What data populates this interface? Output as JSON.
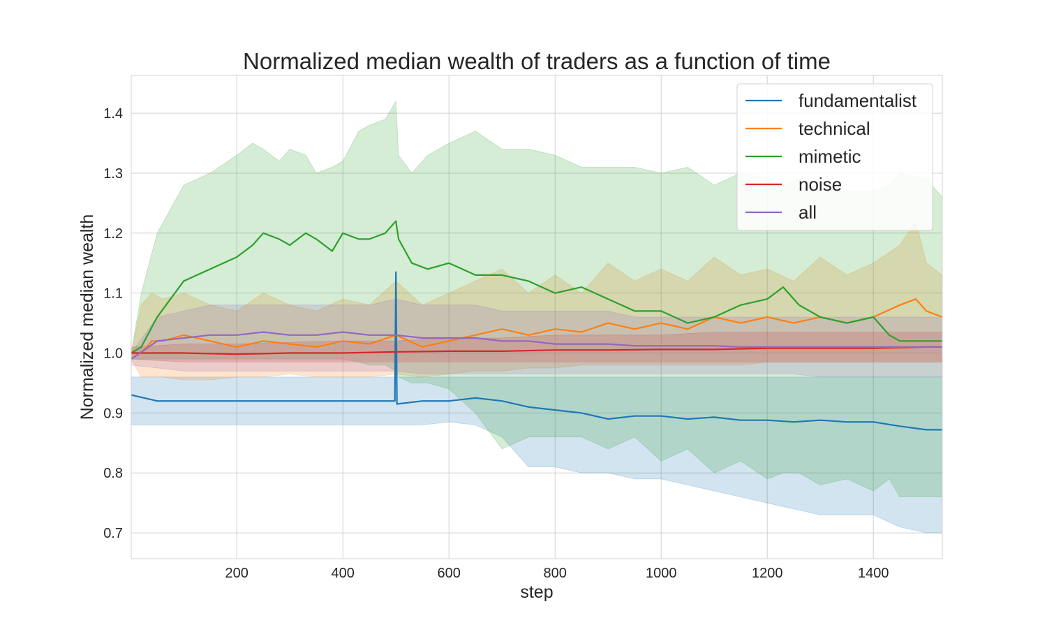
{
  "chart_data": {
    "type": "line",
    "title": "Normalized median wealth of traders as a function of time",
    "xlabel": "step",
    "ylabel": "Normalized median wealth",
    "xlim": [
      1,
      1530
    ],
    "ylim": [
      0.657,
      1.463
    ],
    "x_ticks": [
      200,
      400,
      600,
      800,
      1000,
      1200,
      1400
    ],
    "y_ticks": [
      0.7,
      0.8,
      0.9,
      1.0,
      1.1,
      1.2,
      1.3,
      1.4
    ],
    "x_tick_labels": [
      "200",
      "400",
      "600",
      "800",
      "1000",
      "1200",
      "1400"
    ],
    "y_tick_labels": [
      "0.7",
      "0.8",
      "0.9",
      "1.0",
      "1.1",
      "1.2",
      "1.3",
      "1.4"
    ],
    "grid": true,
    "legend_position": "top-right",
    "series": [
      {
        "name": "fundamentalist",
        "color": "#1f77b4",
        "x": [
          1,
          50,
          100,
          150,
          200,
          250,
          300,
          350,
          400,
          450,
          498,
          500,
          502,
          550,
          600,
          650,
          700,
          750,
          800,
          850,
          900,
          950,
          1000,
          1050,
          1100,
          1150,
          1200,
          1250,
          1300,
          1350,
          1400,
          1450,
          1500,
          1530
        ],
        "median": [
          0.93,
          0.92,
          0.92,
          0.92,
          0.92,
          0.92,
          0.92,
          0.92,
          0.92,
          0.92,
          0.92,
          1.135,
          0.915,
          0.92,
          0.92,
          0.925,
          0.92,
          0.91,
          0.905,
          0.9,
          0.89,
          0.895,
          0.895,
          0.89,
          0.893,
          0.888,
          0.888,
          0.885,
          0.888,
          0.885,
          0.885,
          0.878,
          0.872,
          0.872
        ],
        "lower": [
          0.88,
          0.88,
          0.88,
          0.88,
          0.88,
          0.88,
          0.88,
          0.88,
          0.88,
          0.88,
          0.88,
          0.88,
          0.88,
          0.88,
          0.885,
          0.88,
          0.86,
          0.81,
          0.81,
          0.8,
          0.8,
          0.79,
          0.79,
          0.78,
          0.77,
          0.76,
          0.75,
          0.74,
          0.73,
          0.73,
          0.73,
          0.71,
          0.7,
          0.7
        ],
        "upper": [
          0.96,
          0.96,
          0.96,
          0.96,
          0.96,
          0.96,
          0.96,
          0.96,
          0.96,
          0.96,
          0.96,
          0.96,
          0.96,
          0.96,
          0.96,
          0.96,
          0.96,
          0.96,
          0.96,
          0.96,
          0.96,
          0.96,
          0.96,
          0.96,
          0.96,
          0.96,
          0.96,
          0.96,
          0.96,
          0.96,
          0.96,
          0.96,
          0.96,
          0.96
        ]
      },
      {
        "name": "technical",
        "color": "#ff7f0e",
        "x": [
          1,
          20,
          40,
          60,
          100,
          150,
          200,
          250,
          300,
          350,
          400,
          450,
          500,
          550,
          600,
          650,
          700,
          750,
          800,
          850,
          900,
          950,
          1000,
          1050,
          1100,
          1150,
          1200,
          1250,
          1300,
          1350,
          1400,
          1450,
          1480,
          1500,
          1530
        ],
        "median": [
          1.0,
          1.0,
          1.02,
          1.02,
          1.03,
          1.02,
          1.01,
          1.02,
          1.015,
          1.01,
          1.02,
          1.015,
          1.03,
          1.01,
          1.02,
          1.03,
          1.04,
          1.03,
          1.04,
          1.035,
          1.05,
          1.04,
          1.05,
          1.04,
          1.06,
          1.05,
          1.06,
          1.05,
          1.06,
          1.05,
          1.06,
          1.08,
          1.09,
          1.07,
          1.06
        ],
        "lower": [
          0.99,
          0.96,
          0.96,
          0.96,
          0.955,
          0.955,
          0.96,
          0.96,
          0.965,
          0.96,
          0.96,
          0.96,
          0.965,
          0.96,
          0.965,
          0.97,
          0.97,
          0.975,
          0.975,
          0.98,
          0.98,
          0.98,
          0.98,
          0.98,
          0.98,
          0.98,
          0.985,
          0.985,
          0.985,
          0.985,
          0.985,
          0.985,
          0.985,
          0.985,
          0.985
        ],
        "upper": [
          1.0,
          1.08,
          1.1,
          1.09,
          1.1,
          1.08,
          1.07,
          1.1,
          1.08,
          1.07,
          1.09,
          1.08,
          1.12,
          1.08,
          1.1,
          1.12,
          1.14,
          1.1,
          1.13,
          1.1,
          1.15,
          1.12,
          1.14,
          1.12,
          1.16,
          1.13,
          1.14,
          1.12,
          1.16,
          1.13,
          1.15,
          1.18,
          1.22,
          1.15,
          1.13
        ]
      },
      {
        "name": "mimetic",
        "color": "#2ca02c",
        "x": [
          1,
          20,
          50,
          100,
          150,
          200,
          230,
          250,
          280,
          300,
          330,
          350,
          380,
          400,
          430,
          450,
          480,
          500,
          505,
          530,
          560,
          600,
          650,
          700,
          750,
          800,
          850,
          900,
          950,
          1000,
          1050,
          1100,
          1150,
          1200,
          1230,
          1260,
          1300,
          1350,
          1400,
          1430,
          1450,
          1500,
          1530
        ],
        "median": [
          1.0,
          1.01,
          1.06,
          1.12,
          1.14,
          1.16,
          1.18,
          1.2,
          1.19,
          1.18,
          1.2,
          1.19,
          1.17,
          1.2,
          1.19,
          1.19,
          1.2,
          1.22,
          1.19,
          1.15,
          1.14,
          1.15,
          1.13,
          1.13,
          1.12,
          1.1,
          1.11,
          1.09,
          1.07,
          1.07,
          1.05,
          1.06,
          1.08,
          1.09,
          1.11,
          1.08,
          1.06,
          1.05,
          1.06,
          1.03,
          1.02,
          1.02,
          1.02
        ],
        "lower": [
          0.99,
          0.99,
          0.99,
          0.99,
          0.99,
          0.99,
          0.99,
          0.99,
          0.99,
          0.99,
          0.99,
          0.99,
          0.99,
          0.99,
          0.985,
          0.98,
          0.98,
          0.97,
          0.96,
          0.95,
          0.95,
          0.94,
          0.9,
          0.84,
          0.86,
          0.86,
          0.86,
          0.84,
          0.86,
          0.82,
          0.84,
          0.8,
          0.82,
          0.79,
          0.8,
          0.8,
          0.78,
          0.79,
          0.77,
          0.79,
          0.76,
          0.76,
          0.76
        ],
        "upper": [
          1.0,
          1.1,
          1.2,
          1.28,
          1.3,
          1.33,
          1.35,
          1.34,
          1.32,
          1.34,
          1.33,
          1.3,
          1.31,
          1.32,
          1.37,
          1.38,
          1.39,
          1.42,
          1.33,
          1.3,
          1.33,
          1.35,
          1.37,
          1.34,
          1.34,
          1.33,
          1.31,
          1.31,
          1.31,
          1.3,
          1.31,
          1.28,
          1.3,
          1.29,
          1.28,
          1.29,
          1.27,
          1.27,
          1.27,
          1.28,
          1.3,
          1.29,
          1.26
        ]
      },
      {
        "name": "noise",
        "color": "#d62728",
        "x": [
          1,
          100,
          200,
          300,
          400,
          500,
          600,
          700,
          800,
          900,
          1000,
          1100,
          1200,
          1300,
          1400,
          1500,
          1530
        ],
        "median": [
          1.0,
          1.0,
          0.998,
          1.0,
          1.0,
          1.002,
          1.003,
          1.003,
          1.005,
          1.005,
          1.006,
          1.006,
          1.008,
          1.008,
          1.008,
          1.01,
          1.01
        ],
        "lower": [
          0.99,
          0.985,
          0.985,
          0.985,
          0.985,
          0.985,
          0.985,
          0.985,
          0.985,
          0.985,
          0.985,
          0.985,
          0.985,
          0.985,
          0.985,
          0.985,
          0.985
        ],
        "upper": [
          1.01,
          1.015,
          1.015,
          1.018,
          1.02,
          1.02,
          1.025,
          1.025,
          1.03,
          1.03,
          1.03,
          1.035,
          1.035,
          1.035,
          1.035,
          1.035,
          1.035
        ]
      },
      {
        "name": "all",
        "color": "#9467bd",
        "x": [
          1,
          50,
          100,
          150,
          200,
          250,
          300,
          350,
          400,
          450,
          500,
          550,
          600,
          650,
          700,
          750,
          800,
          850,
          900,
          950,
          1000,
          1050,
          1100,
          1150,
          1200,
          1250,
          1300,
          1350,
          1400,
          1450,
          1500,
          1530
        ],
        "median": [
          0.99,
          1.02,
          1.025,
          1.03,
          1.03,
          1.035,
          1.03,
          1.03,
          1.035,
          1.03,
          1.03,
          1.025,
          1.025,
          1.025,
          1.02,
          1.02,
          1.015,
          1.015,
          1.015,
          1.012,
          1.012,
          1.012,
          1.012,
          1.01,
          1.01,
          1.01,
          1.01,
          1.01,
          1.01,
          1.01,
          1.01,
          1.01
        ],
        "lower": [
          0.98,
          0.975,
          0.97,
          0.97,
          0.97,
          0.97,
          0.97,
          0.97,
          0.97,
          0.97,
          0.97,
          0.965,
          0.965,
          0.965,
          0.965,
          0.965,
          0.965,
          0.965,
          0.965,
          0.965,
          0.965,
          0.965,
          0.965,
          0.965,
          0.965,
          0.965,
          0.96,
          0.96,
          0.96,
          0.96,
          0.96,
          0.96
        ],
        "upper": [
          1.0,
          1.06,
          1.07,
          1.08,
          1.08,
          1.08,
          1.08,
          1.08,
          1.08,
          1.08,
          1.09,
          1.08,
          1.08,
          1.08,
          1.07,
          1.07,
          1.07,
          1.07,
          1.07,
          1.06,
          1.06,
          1.06,
          1.06,
          1.06,
          1.06,
          1.06,
          1.06,
          1.06,
          1.06,
          1.06,
          1.06,
          1.06
        ]
      }
    ]
  }
}
